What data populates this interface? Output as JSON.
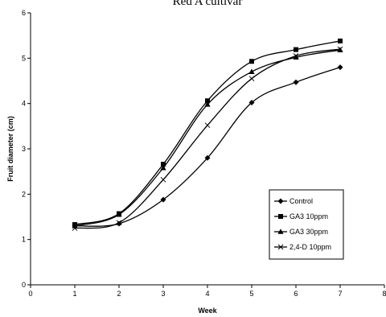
{
  "chart_data": {
    "type": "line",
    "title": "Red A cultivar",
    "xlabel": "Week",
    "ylabel": "Fruit diameter (cm)",
    "xlim": [
      0,
      8
    ],
    "ylim": [
      0,
      6
    ],
    "xticks": [
      0,
      1,
      2,
      3,
      4,
      5,
      6,
      7,
      8
    ],
    "yticks": [
      0,
      1,
      2,
      3,
      4,
      5,
      6
    ],
    "grid": false,
    "legend_position": "bottom-right",
    "x": [
      1,
      2,
      3,
      4,
      5,
      6,
      7
    ],
    "series": [
      {
        "name": "Control",
        "marker": "diamond",
        "values": [
          1.3,
          1.35,
          1.88,
          2.8,
          4.02,
          4.47,
          4.8
        ]
      },
      {
        "name": "GA3 10ppm",
        "marker": "square",
        "values": [
          1.33,
          1.57,
          2.66,
          4.06,
          4.93,
          5.19,
          5.38
        ]
      },
      {
        "name": "GA3 30ppm",
        "marker": "triangle",
        "values": [
          1.3,
          1.55,
          2.58,
          3.98,
          4.7,
          5.02,
          5.18
        ]
      },
      {
        "name": "2,4-D 10ppm",
        "marker": "cross",
        "values": [
          1.25,
          1.37,
          2.32,
          3.52,
          4.55,
          5.05,
          5.2
        ]
      }
    ]
  }
}
